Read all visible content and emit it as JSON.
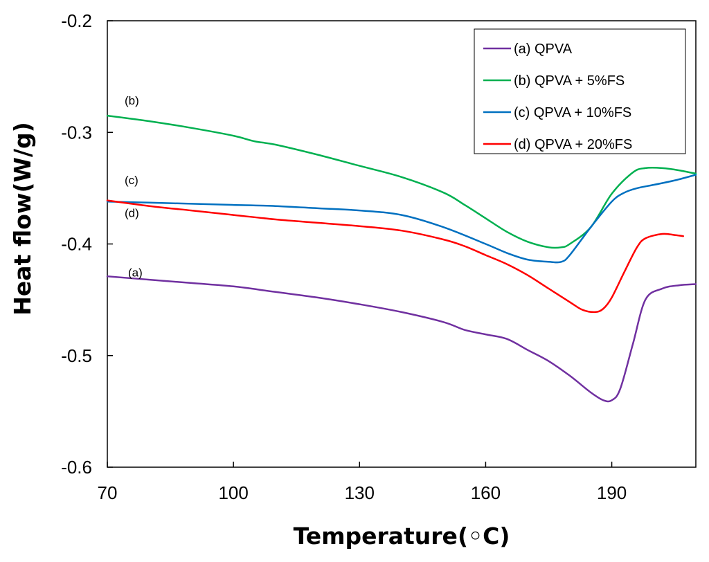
{
  "chart_data": {
    "type": "line",
    "title": "",
    "xlabel": "Temperature(◦C)",
    "ylabel": "Heat flow(W/g)",
    "xlim": [
      70,
      210
    ],
    "ylim": [
      -0.6,
      -0.2
    ],
    "xticks": [
      70,
      100,
      130,
      160,
      190
    ],
    "xtick_labels": [
      "70",
      "100",
      "130",
      "160",
      "190"
    ],
    "yticks": [
      -0.2,
      -0.3,
      -0.4,
      -0.5,
      -0.6
    ],
    "ytick_labels": [
      "-0.2",
      "-0.3",
      "-0.4",
      "-0.5",
      "-0.6"
    ],
    "grid": false,
    "legend_position": "top-right",
    "series": [
      {
        "name": "(a) QPVA",
        "annotation": "(a)",
        "color": "#7030A0",
        "x": [
          70,
          80,
          90,
          100,
          110,
          120,
          130,
          140,
          150,
          155,
          160,
          165,
          170,
          175,
          180,
          185,
          188,
          190,
          192,
          195,
          198,
          202,
          206,
          210
        ],
        "y": [
          -0.429,
          -0.432,
          -0.435,
          -0.438,
          -0.443,
          -0.448,
          -0.454,
          -0.461,
          -0.47,
          -0.477,
          -0.481,
          -0.485,
          -0.495,
          -0.505,
          -0.518,
          -0.533,
          -0.54,
          -0.54,
          -0.53,
          -0.49,
          -0.45,
          -0.44,
          -0.437,
          -0.436
        ]
      },
      {
        "name": "(b) QPVA + 5%FS",
        "annotation": "(b)",
        "color": "#00B050",
        "x": [
          70,
          80,
          90,
          100,
          105,
          110,
          120,
          130,
          140,
          150,
          155,
          160,
          165,
          170,
          175,
          178,
          180,
          185,
          190,
          195,
          198,
          202,
          206,
          210
        ],
        "y": [
          -0.285,
          -0.29,
          -0.296,
          -0.303,
          -0.308,
          -0.311,
          -0.32,
          -0.33,
          -0.34,
          -0.354,
          -0.365,
          -0.377,
          -0.389,
          -0.398,
          -0.403,
          -0.403,
          -0.4,
          -0.385,
          -0.355,
          -0.336,
          -0.332,
          -0.332,
          -0.334,
          -0.337
        ]
      },
      {
        "name": "(c) QPVA + 10%FS",
        "annotation": "(c)",
        "color": "#0070C0",
        "x": [
          70,
          80,
          90,
          100,
          110,
          120,
          130,
          140,
          150,
          160,
          165,
          170,
          175,
          178,
          180,
          185,
          190,
          193,
          196,
          200,
          205,
          210
        ],
        "y": [
          -0.362,
          -0.363,
          -0.364,
          -0.365,
          -0.366,
          -0.368,
          -0.37,
          -0.374,
          -0.385,
          -0.4,
          -0.408,
          -0.414,
          -0.416,
          -0.416,
          -0.41,
          -0.385,
          -0.362,
          -0.354,
          -0.35,
          -0.347,
          -0.343,
          -0.338
        ]
      },
      {
        "name": "(d) QPVA + 20%FS",
        "annotation": "(d)",
        "color": "#FF0000",
        "x": [
          70,
          80,
          90,
          100,
          110,
          120,
          130,
          140,
          150,
          155,
          160,
          165,
          170,
          175,
          180,
          183,
          186,
          188,
          190,
          193,
          196,
          198,
          202,
          205,
          207
        ],
        "y": [
          -0.361,
          -0.366,
          -0.37,
          -0.374,
          -0.378,
          -0.381,
          -0.384,
          -0.388,
          -0.396,
          -0.402,
          -0.41,
          -0.418,
          -0.428,
          -0.44,
          -0.452,
          -0.459,
          -0.461,
          -0.458,
          -0.448,
          -0.425,
          -0.403,
          -0.395,
          -0.391,
          -0.392,
          -0.393
        ]
      }
    ]
  }
}
